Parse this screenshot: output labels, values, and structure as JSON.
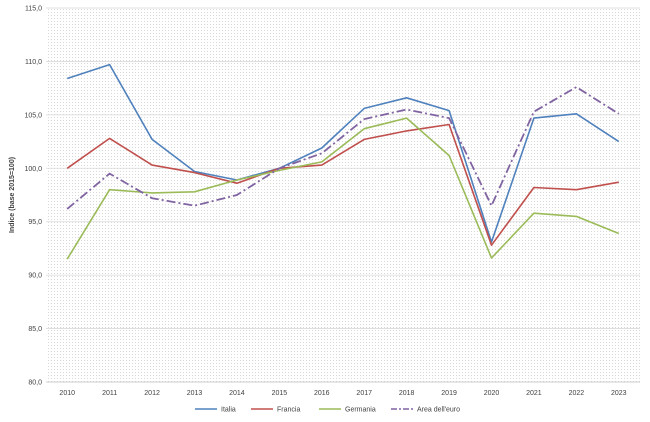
{
  "chart_data": {
    "type": "line",
    "title": "",
    "xlabel": "",
    "ylabel": "Indice (base 2015=100)",
    "ylim": [
      80,
      115
    ],
    "ytick_step": 5,
    "ytick_labels": [
      "80,0",
      "85,0",
      "90,0",
      "95,0",
      "100,0",
      "105,0",
      "110,0",
      "115,0"
    ],
    "x": [
      "2010",
      "2011",
      "2012",
      "2013",
      "2014",
      "2015",
      "2016",
      "2017",
      "2018",
      "2019",
      "2020",
      "2021",
      "2022",
      "2023"
    ],
    "grid": true,
    "legend": "bottom",
    "series": [
      {
        "name": "Italia",
        "color": "#4F81BD",
        "dash": "solid",
        "values": [
          108.4,
          109.7,
          102.7,
          99.7,
          98.9,
          100.0,
          101.9,
          105.6,
          106.6,
          105.4,
          93.1,
          104.7,
          105.1,
          102.5
        ]
      },
      {
        "name": "Francia",
        "color": "#C0504D",
        "dash": "solid",
        "values": [
          100.0,
          102.8,
          100.3,
          99.6,
          98.6,
          100.0,
          100.3,
          102.7,
          103.5,
          104.1,
          92.8,
          98.2,
          98.0,
          98.7
        ]
      },
      {
        "name": "Germania",
        "color": "#9BBB59",
        "dash": "solid",
        "values": [
          91.5,
          98.0,
          97.7,
          97.8,
          98.9,
          99.8,
          100.6,
          103.7,
          104.7,
          101.2,
          91.6,
          95.8,
          95.5,
          93.9
        ]
      },
      {
        "name": "Area dell'euro",
        "color": "#8064A2",
        "dash": "dashdot",
        "values": [
          96.2,
          99.5,
          97.2,
          96.5,
          97.5,
          100.0,
          101.4,
          104.6,
          105.5,
          104.7,
          96.5,
          105.3,
          107.6,
          105.1
        ]
      }
    ]
  }
}
